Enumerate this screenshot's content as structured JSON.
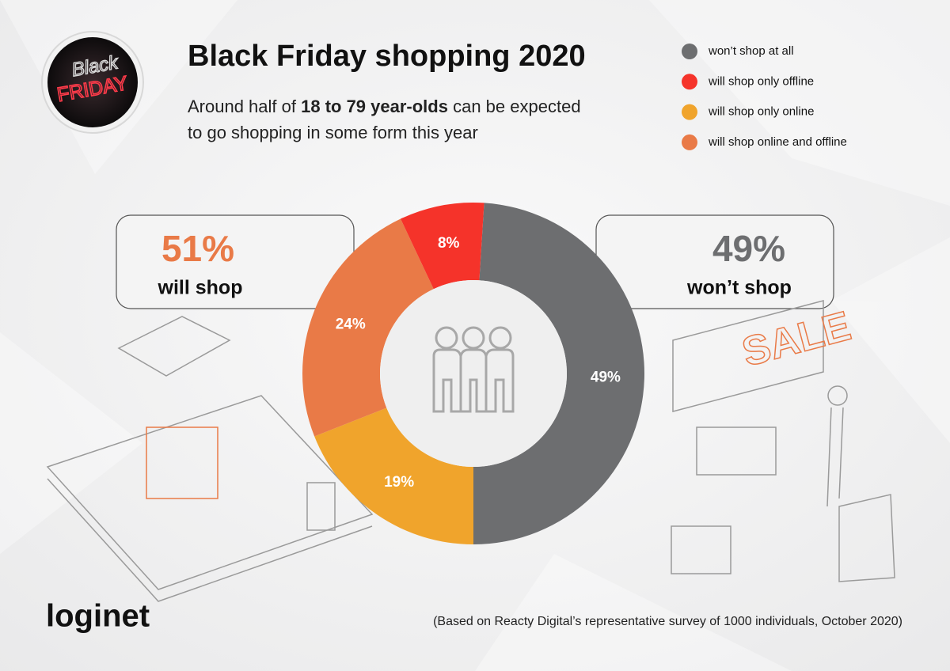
{
  "chart_data": {
    "type": "pie",
    "title": "Black Friday shopping 2020",
    "subtitle": [
      "Around half of ",
      "18 to 79 year-olds",
      " can be expected",
      "to go shopping in some form this year"
    ],
    "categories": [
      "won’t shop at all",
      "will shop only offline",
      "will shop only online",
      "will shop online and offline"
    ],
    "values": [
      49,
      8,
      19,
      24
    ],
    "value_labels": [
      "49%",
      "8%",
      "19%",
      "24%"
    ],
    "colors": [
      "#6d6e70",
      "#f5332a",
      "#f0a42c",
      "#e97a47"
    ],
    "annotations": [
      {
        "value_label": "51%",
        "label": "will shop"
      },
      {
        "value_label": "49%",
        "label": "won’t shop"
      }
    ],
    "source": "(Based on Reacty Digital’s representative survey of 1000 individuals, October 2020)",
    "logo": "loginet",
    "badge": [
      "Black",
      "FRIDAY"
    ]
  }
}
